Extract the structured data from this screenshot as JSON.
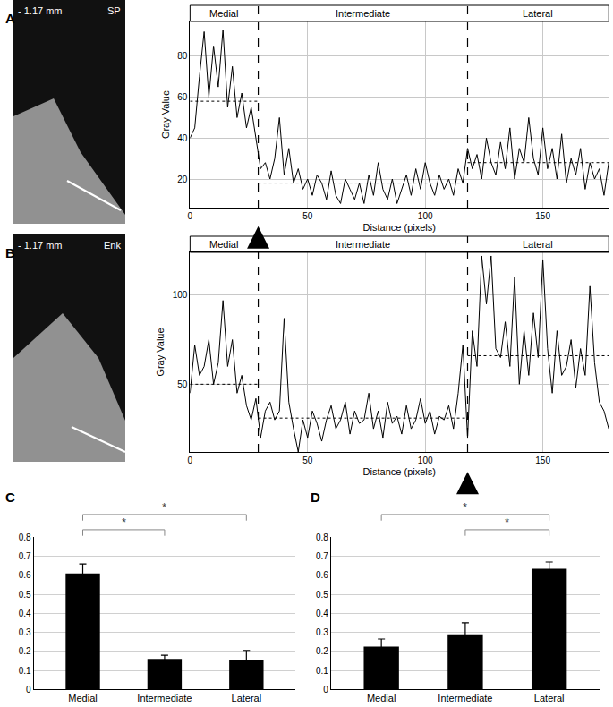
{
  "chart_data": [
    {
      "type": "line",
      "panel_label": "A",
      "image_labels": [
        "- 1.17 mm",
        "SP"
      ],
      "x_label": "Distance (pixels)",
      "y_label": "Gray Value",
      "color": "#000000",
      "grid": true,
      "x": [
        0,
        2,
        4,
        6,
        8,
        10,
        12,
        14,
        16,
        18,
        20,
        22,
        24,
        26,
        28,
        30,
        32,
        34,
        36,
        38,
        40,
        42,
        44,
        46,
        48,
        50,
        52,
        54,
        56,
        58,
        60,
        62,
        64,
        66,
        68,
        70,
        72,
        74,
        76,
        78,
        80,
        82,
        84,
        86,
        88,
        90,
        92,
        94,
        96,
        98,
        100,
        102,
        104,
        106,
        108,
        110,
        112,
        114,
        116,
        118,
        120,
        122,
        124,
        126,
        128,
        130,
        132,
        134,
        136,
        138,
        140,
        142,
        144,
        146,
        148,
        150,
        152,
        154,
        156,
        158,
        160,
        162,
        164,
        166,
        168,
        170,
        172,
        174,
        176,
        178
      ],
      "values": [
        40,
        45,
        70,
        92,
        60,
        85,
        65,
        93,
        55,
        75,
        50,
        62,
        45,
        55,
        40,
        25,
        28,
        20,
        30,
        50,
        22,
        35,
        18,
        25,
        15,
        20,
        12,
        22,
        18,
        10,
        24,
        12,
        8,
        20,
        15,
        10,
        18,
        8,
        22,
        12,
        28,
        15,
        10,
        20,
        8,
        15,
        22,
        12,
        25,
        15,
        28,
        18,
        12,
        22,
        15,
        20,
        12,
        25,
        18,
        35,
        25,
        32,
        20,
        40,
        28,
        22,
        38,
        25,
        45,
        20,
        35,
        28,
        50,
        30,
        22,
        45,
        25,
        35,
        20,
        42,
        18,
        30,
        22,
        35,
        15,
        28,
        20,
        25,
        12,
        28
      ],
      "xlim": [
        0,
        178
      ],
      "xticks": [
        0,
        50,
        100,
        150
      ],
      "ylim": [
        6,
        97
      ],
      "yticks": [
        20,
        40,
        60,
        80
      ],
      "regions": [
        "Medial",
        "Intermediate",
        "Lateral"
      ],
      "boundaries": [
        29,
        118
      ],
      "region_means": [
        58,
        18,
        28
      ],
      "arrow_x": 29
    },
    {
      "type": "line",
      "panel_label": "B",
      "image_labels": [
        "- 1.17 mm",
        "Enk"
      ],
      "x_label": "Distance (pixels)",
      "y_label": "Gray Value",
      "color": "#000000",
      "grid": true,
      "x": [
        0,
        2,
        4,
        6,
        8,
        10,
        12,
        14,
        16,
        18,
        20,
        22,
        24,
        26,
        28,
        30,
        32,
        34,
        36,
        38,
        40,
        42,
        44,
        46,
        48,
        50,
        52,
        54,
        56,
        58,
        60,
        62,
        64,
        66,
        68,
        70,
        72,
        74,
        76,
        78,
        80,
        82,
        84,
        86,
        88,
        90,
        92,
        94,
        96,
        98,
        100,
        102,
        104,
        106,
        108,
        110,
        112,
        114,
        116,
        118,
        120,
        122,
        124,
        126,
        128,
        130,
        132,
        134,
        136,
        138,
        140,
        142,
        144,
        146,
        148,
        150,
        152,
        154,
        156,
        158,
        160,
        162,
        164,
        166,
        168,
        170,
        172,
        174,
        176,
        178
      ],
      "values": [
        45,
        72,
        55,
        60,
        75,
        50,
        62,
        97,
        60,
        75,
        45,
        55,
        38,
        30,
        42,
        20,
        35,
        40,
        30,
        35,
        87,
        40,
        25,
        12,
        30,
        20,
        35,
        28,
        18,
        30,
        38,
        25,
        30,
        40,
        22,
        35,
        28,
        30,
        45,
        25,
        35,
        20,
        40,
        28,
        32,
        22,
        38,
        25,
        30,
        42,
        28,
        35,
        22,
        32,
        30,
        38,
        25,
        45,
        72,
        20,
        80,
        60,
        122,
        95,
        122,
        70,
        65,
        85,
        60,
        110,
        50,
        80,
        55,
        90,
        65,
        120,
        70,
        45,
        80,
        55,
        60,
        75,
        48,
        70,
        55,
        105,
        62,
        40,
        35,
        25
      ],
      "xlim": [
        0,
        178
      ],
      "xticks": [
        0,
        50,
        100,
        150
      ],
      "ylim": [
        12,
        124
      ],
      "yticks": [
        50,
        100
      ],
      "regions": [
        "Medial",
        "Intermediate",
        "Lateral"
      ],
      "boundaries": [
        29,
        118
      ],
      "region_means": [
        50,
        31,
        66
      ],
      "arrow_x": 118
    },
    {
      "type": "bar",
      "panel_label": "C",
      "color": "#000000",
      "grid": true,
      "categories": [
        "Medial",
        "Intermediate",
        "Lateral"
      ],
      "values": [
        0.61,
        0.16,
        0.155
      ],
      "errors": [
        0.05,
        0.02,
        0.05
      ],
      "ylim": [
        0,
        0.8
      ],
      "yticks": [
        0,
        0.1,
        0.2,
        0.3,
        0.4,
        0.5,
        0.6,
        0.7,
        0.8
      ],
      "significance": [
        {
          "from": "Medial",
          "to": "Intermediate",
          "text": "*"
        },
        {
          "from": "Medial",
          "to": "Lateral",
          "text": "*"
        }
      ]
    },
    {
      "type": "bar",
      "panel_label": "D",
      "color": "#000000",
      "grid": true,
      "categories": [
        "Medial",
        "Intermediate",
        "Lateral"
      ],
      "values": [
        0.225,
        0.29,
        0.635
      ],
      "errors": [
        0.04,
        0.06,
        0.035
      ],
      "ylim": [
        0,
        0.8
      ],
      "yticks": [
        0,
        0.1,
        0.2,
        0.3,
        0.4,
        0.5,
        0.6,
        0.7,
        0.8
      ],
      "significance": [
        {
          "from": "Intermediate",
          "to": "Lateral",
          "text": "*"
        },
        {
          "from": "Medial",
          "to": "Lateral",
          "text": "*"
        }
      ]
    }
  ]
}
